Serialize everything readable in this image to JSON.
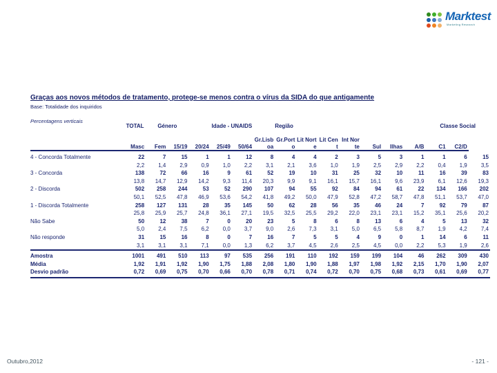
{
  "logo": {
    "brand": "Marktest",
    "tagline": "Marketing Research",
    "dot_colors": [
      "#2f8a1f",
      "#3fae2a",
      "#7dc242",
      "#1c5fa8",
      "#3f78c0",
      "#86aed6",
      "#e04b1f",
      "#ef8423",
      "#f2b26a"
    ]
  },
  "header": {
    "title": "Graças aos novos métodos de tratamento, protege-se menos contra o vírus da SIDA do que antigamente",
    "base": "Base: Totalidade dos inquiridos",
    "note": "Percentagens verticais"
  },
  "table": {
    "groups": [
      {
        "label": "",
        "span": 1,
        "align": "left"
      },
      {
        "label": "TOTAL",
        "span": 1,
        "align": "center"
      },
      {
        "label": "Género",
        "span": 2,
        "align": "center"
      },
      {
        "label": "Idade - UNAIDS",
        "span": 4,
        "align": "center"
      },
      {
        "label": "Região",
        "span": 7,
        "align": "left"
      },
      {
        "label": "Classe Social",
        "span": 3,
        "align": "center"
      }
    ],
    "col_headers": [
      {
        "l1": "",
        "l2": ""
      },
      {
        "l1": "",
        "l2": "Masc"
      },
      {
        "l1": "",
        "l2": "Fem"
      },
      {
        "l1": "",
        "l2": "15/19"
      },
      {
        "l1": "",
        "l2": "20/24"
      },
      {
        "l1": "",
        "l2": "25/49"
      },
      {
        "l1": "",
        "l2": "50/64"
      },
      {
        "l1": "Gr.Lisb",
        "l2": "oa"
      },
      {
        "l1": "Gr.Port",
        "l2": "o"
      },
      {
        "l1": "Lit Nort",
        "l2": "e"
      },
      {
        "l1": "Lit Cen",
        "l2": "t"
      },
      {
        "l1": "Int Nor",
        "l2": "te"
      },
      {
        "l1": "",
        "l2": "Sul"
      },
      {
        "l1": "",
        "l2": "Ilhas"
      },
      {
        "l1": "",
        "l2": "A/B"
      },
      {
        "l1": "",
        "l2": "C1"
      },
      {
        "l1": "",
        "l2": "C2/D"
      }
    ],
    "rows": [
      {
        "label": "4 - Concorda Totalmente",
        "counts": [
          "22",
          "7",
          "15",
          "1",
          "1",
          "12",
          "8",
          "4",
          "4",
          "2",
          "3",
          "5",
          "3",
          "1",
          "1",
          "6",
          "15"
        ],
        "pcts": [
          "2,2",
          "1,4",
          "2,9",
          "0,9",
          "1,0",
          "2,2",
          "3,1",
          "2,1",
          "3,6",
          "1,0",
          "1,9",
          "2,5",
          "2,9",
          "2,2",
          "0,4",
          "1,9",
          "3,5"
        ]
      },
      {
        "label": "3 - Concorda",
        "counts": [
          "138",
          "72",
          "66",
          "16",
          "9",
          "61",
          "52",
          "19",
          "10",
          "31",
          "25",
          "32",
          "10",
          "11",
          "16",
          "39",
          "83"
        ],
        "pcts": [
          "13,8",
          "14,7",
          "12,9",
          "14,2",
          "9,3",
          "11,4",
          "20,3",
          "9,9",
          "9,1",
          "16,1",
          "15,7",
          "16,1",
          "9,6",
          "23,9",
          "6,1",
          "12,6",
          "19,3"
        ]
      },
      {
        "label": "2 - Discorda",
        "counts": [
          "502",
          "258",
          "244",
          "53",
          "52",
          "290",
          "107",
          "94",
          "55",
          "92",
          "84",
          "94",
          "61",
          "22",
          "134",
          "166",
          "202"
        ],
        "pcts": [
          "50,1",
          "52,5",
          "47,8",
          "46,9",
          "53,6",
          "54,2",
          "41,8",
          "49,2",
          "50,0",
          "47,9",
          "52,8",
          "47,2",
          "58,7",
          "47,8",
          "51,1",
          "53,7",
          "47,0"
        ]
      },
      {
        "label": "1 - Discorda Totalmente",
        "counts": [
          "258",
          "127",
          "131",
          "28",
          "35",
          "145",
          "50",
          "62",
          "28",
          "56",
          "35",
          "46",
          "24",
          "7",
          "92",
          "79",
          "87"
        ],
        "pcts": [
          "25,8",
          "25,9",
          "25,7",
          "24,8",
          "36,1",
          "27,1",
          "19,5",
          "32,5",
          "25,5",
          "29,2",
          "22,0",
          "23,1",
          "23,1",
          "15,2",
          "35,1",
          "25,6",
          "20,2"
        ]
      },
      {
        "label": "Não Sabe",
        "counts": [
          "50",
          "12",
          "38",
          "7",
          "0",
          "20",
          "23",
          "5",
          "8",
          "6",
          "8",
          "13",
          "6",
          "4",
          "5",
          "13",
          "32"
        ],
        "pcts": [
          "5,0",
          "2,4",
          "7,5",
          "6,2",
          "0,0",
          "3,7",
          "9,0",
          "2,6",
          "7,3",
          "3,1",
          "5,0",
          "6,5",
          "5,8",
          "8,7",
          "1,9",
          "4,2",
          "7,4"
        ]
      },
      {
        "label": "Não responde",
        "counts": [
          "31",
          "15",
          "16",
          "8",
          "0",
          "7",
          "16",
          "7",
          "5",
          "5",
          "4",
          "9",
          "0",
          "1",
          "14",
          "6",
          "11"
        ],
        "pcts": [
          "3,1",
          "3,1",
          "3,1",
          "7,1",
          "0,0",
          "1,3",
          "6,2",
          "3,7",
          "4,5",
          "2,6",
          "2,5",
          "4,5",
          "0,0",
          "2,2",
          "5,3",
          "1,9",
          "2,6"
        ]
      }
    ],
    "summary": [
      {
        "label": "Amostra",
        "values": [
          "1001",
          "491",
          "510",
          "113",
          "97",
          "535",
          "256",
          "191",
          "110",
          "192",
          "159",
          "199",
          "104",
          "46",
          "262",
          "309",
          "430"
        ]
      },
      {
        "label": "Média",
        "values": [
          "1,92",
          "1,91",
          "1,92",
          "1,90",
          "1,75",
          "1,88",
          "2,08",
          "1,80",
          "1,90",
          "1,88",
          "1,97",
          "1,98",
          "1,92",
          "2,15",
          "1,70",
          "1,90",
          "2,07"
        ]
      },
      {
        "label": "Desvio padrão",
        "values": [
          "0,72",
          "0,69",
          "0,75",
          "0,70",
          "0,66",
          "0,70",
          "0,78",
          "0,71",
          "0,74",
          "0,72",
          "0,70",
          "0,75",
          "0,68",
          "0,73",
          "0,61",
          "0,69",
          "0,77"
        ]
      }
    ]
  },
  "footer": {
    "date": "Outubro,2012",
    "page": "- 121 -"
  },
  "colors": {
    "text_navy": "#1b2670",
    "title_navy": "#141e66",
    "brand_blue": "#1565b5",
    "footer_gray": "#44555f"
  }
}
